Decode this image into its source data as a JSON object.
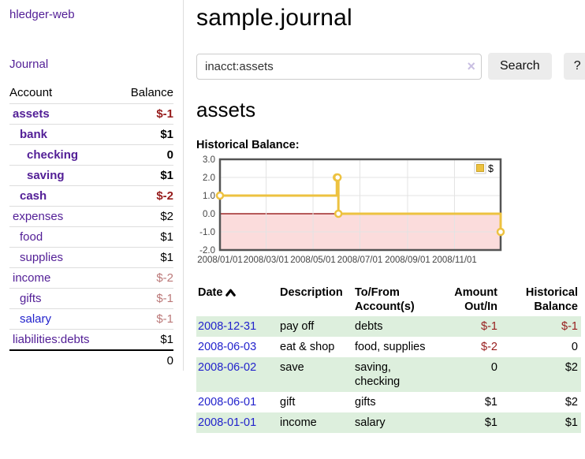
{
  "app": {
    "title": "hledger-web",
    "nav_journal": "Journal"
  },
  "sidebar": {
    "header": {
      "account": "Account",
      "balance": "Balance"
    },
    "accounts": [
      {
        "name": "assets",
        "indent": 1,
        "bold": true,
        "link": "purple",
        "balance": "$-1",
        "bal_class": "neg-strong"
      },
      {
        "name": "bank",
        "indent": 2,
        "bold": true,
        "link": "purple",
        "balance": "$1",
        "bal_class": "pos"
      },
      {
        "name": "checking",
        "indent": 3,
        "bold": true,
        "link": "purple",
        "balance": "0",
        "bal_class": "pos"
      },
      {
        "name": "saving",
        "indent": 3,
        "bold": true,
        "link": "purple",
        "balance": "$1",
        "bal_class": "pos"
      },
      {
        "name": "cash",
        "indent": 2,
        "bold": true,
        "link": "purple",
        "balance": "$-2",
        "bal_class": "neg-strong"
      },
      {
        "name": "expenses",
        "indent": 1,
        "bold": false,
        "link": "purple",
        "balance": "$2",
        "bal_class": "pos"
      },
      {
        "name": "food",
        "indent": 2,
        "bold": false,
        "link": "purple",
        "balance": "$1",
        "bal_class": "pos"
      },
      {
        "name": "supplies",
        "indent": 2,
        "bold": false,
        "link": "purple",
        "balance": "$1",
        "bal_class": "pos"
      },
      {
        "name": "income",
        "indent": 1,
        "bold": false,
        "link": "purple",
        "balance": "$-2",
        "bal_class": "neg-muted"
      },
      {
        "name": "gifts",
        "indent": 2,
        "bold": false,
        "link": "purple",
        "balance": "$-1",
        "bal_class": "neg-muted"
      },
      {
        "name": "salary",
        "indent": 2,
        "bold": false,
        "link": "blue",
        "balance": "$-1",
        "bal_class": "neg-muted"
      },
      {
        "name": "liabilities:debts",
        "indent": 1,
        "bold": false,
        "link": "purple",
        "balance": "$1",
        "bal_class": "pos"
      }
    ],
    "total": "0"
  },
  "header": {
    "title": "sample.journal"
  },
  "search": {
    "value": "inacct:assets",
    "clear_icon": "×",
    "button_label": "Search",
    "help_label": "?"
  },
  "account_page": {
    "heading": "assets",
    "chart_heading": "Historical Balance:"
  },
  "chart_data": {
    "type": "line",
    "title": "Historical Balance:",
    "step": true,
    "series": [
      {
        "name": "$",
        "color": "#edc240",
        "points": [
          [
            "2008-01-01",
            1
          ],
          [
            "2008-06-01",
            2
          ],
          [
            "2008-06-02",
            2
          ],
          [
            "2008-06-03",
            0
          ],
          [
            "2008-12-31",
            -1
          ]
        ]
      }
    ],
    "x_range": [
      "2008-01-01",
      "2008-12-31"
    ],
    "x_ticks": [
      "2008/01/01",
      "2008/03/01",
      "2008/05/01",
      "2008/07/01",
      "2008/09/01",
      "2008/11/01"
    ],
    "y_ticks": [
      3.0,
      2.0,
      1.0,
      0.0,
      -1.0,
      -2.0
    ],
    "ylim": [
      -2,
      3
    ],
    "grid": true,
    "legend_position": "top-right",
    "negative_fill": "#fbdcdc",
    "zero_line_color": "#8b0000",
    "border_color": "#545454",
    "grid_color": "#e3e3e3",
    "tick_label_color": "#444444"
  },
  "register": {
    "columns": [
      {
        "label": "Date",
        "sorted": "asc"
      },
      {
        "label": "Description"
      },
      {
        "label": "To/From Account(s)"
      },
      {
        "label": "Amount Out/In"
      },
      {
        "label": "Historical Balance"
      }
    ],
    "rows": [
      {
        "date": "2008-12-31",
        "description": "pay off",
        "accounts": "debts",
        "amount": "$-1",
        "amount_class": "neg",
        "balance": "$-1",
        "balance_class": "neg"
      },
      {
        "date": "2008-06-03",
        "description": "eat & shop",
        "accounts": "food, supplies",
        "amount": "$-2",
        "amount_class": "neg",
        "balance": "0",
        "balance_class": "plain"
      },
      {
        "date": "2008-06-02",
        "description": "save",
        "accounts": "saving, checking",
        "amount": "0",
        "amount_class": "plain",
        "balance": "$2",
        "balance_class": "plain"
      },
      {
        "date": "2008-06-01",
        "description": "gift",
        "accounts": "gifts",
        "amount": "$1",
        "amount_class": "plain",
        "balance": "$2",
        "balance_class": "plain"
      },
      {
        "date": "2008-01-01",
        "description": "income",
        "accounts": "salary",
        "amount": "$1",
        "amount_class": "plain",
        "balance": "$1",
        "balance_class": "plain"
      }
    ]
  }
}
